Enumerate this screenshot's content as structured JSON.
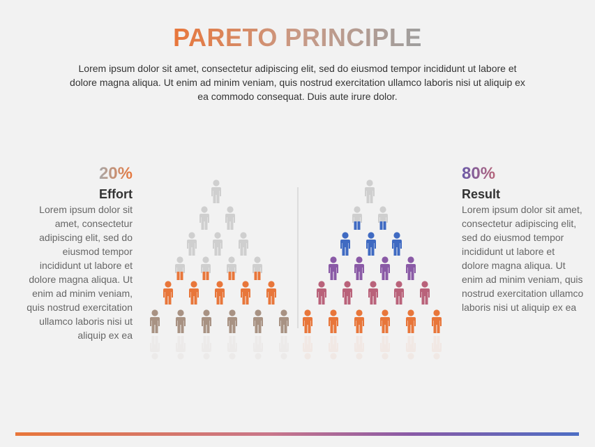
{
  "title": "PARETO PRINCIPLE",
  "description": "Lorem ipsum dolor sit amet, consectetur adipiscing elit, sed do eiusmod tempor incididunt ut labore et dolore magna aliqua. Ut enim ad minim veniam, quis nostrud exercitation ullamco laboris nisi ut aliquip ex ea commodo consequat. Duis aute irure dolor.",
  "left": {
    "percent": "20%",
    "heading": "Effort",
    "text": "Lorem ipsum dolor sit amet, consectetur adipiscing elit, sed do eiusmod tempor incididunt ut labore et dolore magna aliqua. Ut enim ad minim veniam, quis nostrud exercitation ullamco laboris nisi ut aliquip ex ea"
  },
  "right": {
    "percent": "80%",
    "heading": "Result",
    "text": "Lorem ipsum dolor sit amet, consectetur adipiscing elit, sed do eiusmod tempor incididunt ut labore et dolore magna aliqua. Ut enim ad minim veniam, quis nostrud exercitation ullamco laboris nisi ut aliquip ex ea"
  }
}
